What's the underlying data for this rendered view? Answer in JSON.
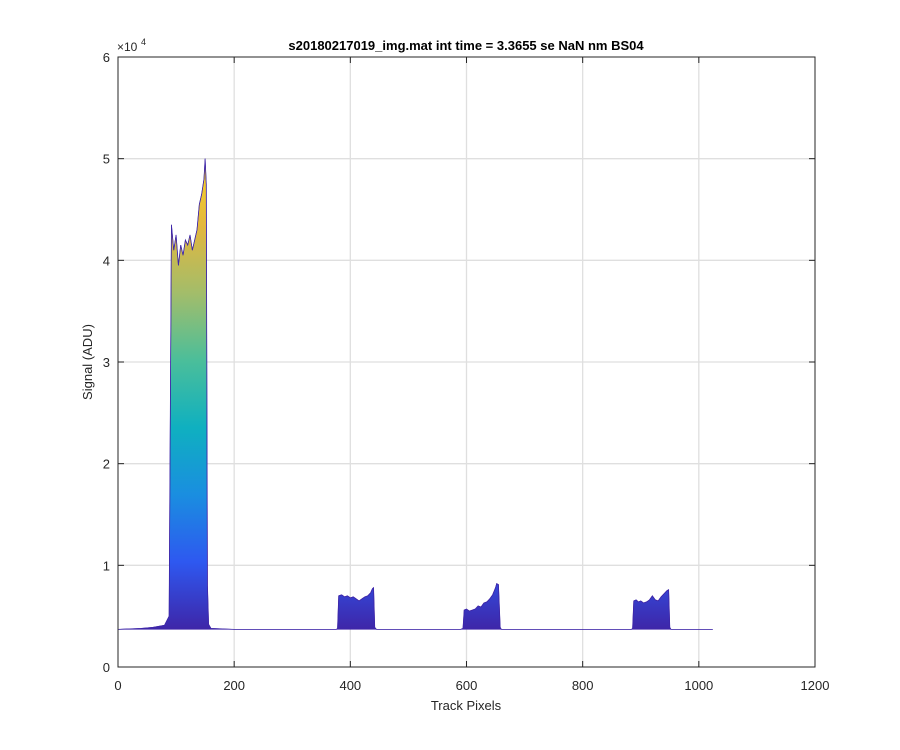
{
  "chart_data": {
    "type": "area",
    "title": "s20180217019_img.mat int time = 3.3655 se  NaN nm BS04",
    "xlabel": "Track Pixels",
    "ylabel": "Signal (ADU)",
    "xlim": [
      0,
      1200
    ],
    "ylim": [
      0,
      60000
    ],
    "xticks": [
      0,
      200,
      400,
      600,
      800,
      1000,
      1200
    ],
    "xtick_labels": [
      "0",
      "200",
      "400",
      "600",
      "800",
      "1000",
      "1200"
    ],
    "yticks": [
      0,
      10000,
      20000,
      30000,
      40000,
      50000,
      60000
    ],
    "ytick_labels": [
      "0",
      "1",
      "2",
      "3",
      "4",
      "5",
      "6"
    ],
    "y_exponent_label": "×10",
    "y_exponent_power": "4",
    "grid": true,
    "baseline": 3700,
    "colormap": [
      "#3e26a8",
      "#2e58f0",
      "#1a8ee0",
      "#0fb0c0",
      "#4bbe9a",
      "#a3bd6a",
      "#e3b73e",
      "#f9d525"
    ],
    "series": [
      {
        "x": [
          0,
          40,
          60,
          80,
          88,
          92,
          96,
          100,
          104,
          108,
          112,
          116,
          120,
          124,
          128,
          132,
          136,
          140,
          144,
          148,
          150,
          152,
          154,
          156,
          160,
          200,
          300,
          376,
          378,
          380,
          385,
          390,
          395,
          400,
          405,
          410,
          415,
          420,
          425,
          430,
          435,
          438,
          440,
          442,
          445,
          450,
          500,
          590,
          594,
          596,
          600,
          605,
          610,
          615,
          620,
          625,
          630,
          635,
          640,
          645,
          650,
          652,
          655,
          658,
          660,
          700,
          800,
          884,
          886,
          888,
          892,
          896,
          900,
          905,
          910,
          915,
          920,
          925,
          930,
          935,
          940,
          945,
          948,
          950,
          952,
          960,
          1000,
          1024
        ],
        "y": [
          3700,
          3800,
          3900,
          4100,
          5000,
          43500,
          41000,
          42500,
          39500,
          41500,
          40500,
          42000,
          41500,
          42500,
          41000,
          42000,
          43000,
          45500,
          46500,
          48000,
          50000,
          47500,
          8000,
          4200,
          3800,
          3700,
          3700,
          3700,
          3800,
          7000,
          7100,
          6900,
          7000,
          6800,
          6900,
          6700,
          6500,
          6700,
          6900,
          7000,
          7300,
          7700,
          7800,
          3900,
          3700,
          3700,
          3700,
          3700,
          3800,
          5600,
          5700,
          5500,
          5600,
          5700,
          6000,
          5900,
          6300,
          6400,
          6700,
          7100,
          7800,
          8200,
          8100,
          3900,
          3700,
          3700,
          3700,
          3700,
          3800,
          6500,
          6600,
          6400,
          6500,
          6300,
          6400,
          6600,
          7000,
          6600,
          6500,
          6900,
          7200,
          7500,
          7600,
          3900,
          3700,
          3700,
          3700,
          3700
        ]
      }
    ]
  }
}
